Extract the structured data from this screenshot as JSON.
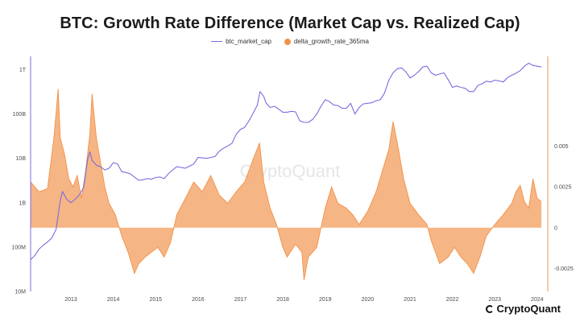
{
  "chart_data": {
    "type": "line",
    "title": "BTC: Growth Rate Difference (Market Cap vs. Realized Cap)",
    "watermark": "CryptoQuant",
    "brand": "CryptoQuant",
    "legend": [
      "btc_market_cap",
      "delta_growth_rate_365ma"
    ],
    "colors": {
      "market_cap": "#7b6ce0",
      "delta": "#f2924a",
      "delta_fill": "#f4a86f",
      "axis_right": "#f2924a",
      "axis_left": "#7b6ce0"
    },
    "x_ticks": [
      "2013",
      "2014",
      "2015",
      "2016",
      "2017",
      "2018",
      "2019",
      "2020",
      "2021",
      "2022",
      "2023",
      "2024"
    ],
    "y_left": {
      "scale": "log",
      "ticks": [
        "10M",
        "100M",
        "1B",
        "10B",
        "100B",
        "1T"
      ],
      "tick_values": [
        10000000.0,
        100000000.0,
        1000000000.0,
        10000000000.0,
        100000000000.0,
        1000000000000.0
      ],
      "range": [
        10000000.0,
        2000000000000.0
      ]
    },
    "y_right": {
      "ticks": [
        "-0.0025",
        "0",
        "0.0025",
        "0.005"
      ],
      "tick_values": [
        -0.0025,
        0,
        0.0025,
        0.005
      ],
      "range": [
        -0.0039,
        0.0105
      ]
    },
    "x_range": [
      2012.55,
      2024.75
    ],
    "series": [
      {
        "name": "btc_market_cap",
        "style": "line",
        "x": [
          2012.55,
          2012.65,
          2012.75,
          2012.85,
          2012.95,
          2013.05,
          2013.15,
          2013.25,
          2013.3,
          2013.4,
          2013.5,
          2013.6,
          2013.7,
          2013.8,
          2013.9,
          2013.95,
          2014.0,
          2014.1,
          2014.2,
          2014.3,
          2014.4,
          2014.5,
          2014.6,
          2014.7,
          2014.8,
          2014.9,
          2015.0,
          2015.1,
          2015.2,
          2015.3,
          2015.4,
          2015.5,
          2015.6,
          2015.7,
          2015.8,
          2015.9,
          2016.0,
          2016.2,
          2016.4,
          2016.5,
          2016.7,
          2016.9,
          2017.0,
          2017.1,
          2017.2,
          2017.3,
          2017.4,
          2017.5,
          2017.6,
          2017.7,
          2017.8,
          2017.9,
          2017.96,
          2018.05,
          2018.1,
          2018.2,
          2018.3,
          2018.4,
          2018.5,
          2018.6,
          2018.7,
          2018.8,
          2018.9,
          2019.0,
          2019.1,
          2019.2,
          2019.3,
          2019.4,
          2019.5,
          2019.6,
          2019.7,
          2019.8,
          2019.9,
          2020.0,
          2020.1,
          2020.2,
          2020.3,
          2020.4,
          2020.5,
          2020.6,
          2020.7,
          2020.8,
          2020.9,
          2021.0,
          2021.1,
          2021.2,
          2021.3,
          2021.4,
          2021.5,
          2021.6,
          2021.7,
          2021.8,
          2021.9,
          2022.0,
          2022.1,
          2022.2,
          2022.3,
          2022.4,
          2022.5,
          2022.6,
          2022.7,
          2022.8,
          2022.9,
          2023.0,
          2023.1,
          2023.2,
          2023.3,
          2023.4,
          2023.5,
          2023.6,
          2023.7,
          2023.8,
          2023.9,
          2024.0,
          2024.1,
          2024.2,
          2024.3,
          2024.4,
          2024.5,
          2024.6
        ],
        "y": [
          52000000.0,
          65000000.0,
          90000000.0,
          110000000.0,
          130000000.0,
          160000000.0,
          250000000.0,
          1100000000.0,
          1800000000.0,
          1200000000.0,
          1000000000.0,
          1200000000.0,
          1500000000.0,
          2200000000.0,
          10000000000.0,
          14000000000.0,
          9000000000.0,
          7000000000.0,
          6500000000.0,
          5500000000.0,
          6000000000.0,
          8000000000.0,
          7500000000.0,
          5000000000.0,
          4800000000.0,
          4500000000.0,
          3800000000.0,
          3200000000.0,
          3300000000.0,
          3500000000.0,
          3400000000.0,
          3700000000.0,
          3800000000.0,
          3500000000.0,
          4500000000.0,
          5500000000.0,
          6500000000.0,
          6000000000.0,
          7500000000.0,
          10500000000.0,
          10000000000.0,
          11000000000.0,
          14500000000.0,
          17000000000.0,
          19000000000.0,
          22000000000.0,
          35000000000.0,
          45000000000.0,
          50000000000.0,
          70000000000.0,
          105000000000.0,
          160000000000.0,
          320000000000.0,
          250000000000.0,
          180000000000.0,
          140000000000.0,
          150000000000.0,
          130000000000.0,
          110000000000.0,
          110000000000.0,
          115000000000.0,
          112000000000.0,
          70000000000.0,
          65000000000.0,
          65000000000.0,
          75000000000.0,
          100000000000.0,
          150000000000.0,
          210000000000.0,
          190000000000.0,
          160000000000.0,
          155000000000.0,
          135000000000.0,
          135000000000.0,
          175000000000.0,
          100000000000.0,
          140000000000.0,
          170000000000.0,
          175000000000.0,
          180000000000.0,
          200000000000.0,
          210000000000.0,
          300000000000.0,
          580000000000.0,
          850000000000.0,
          1050000000000.0,
          1100000000000.0,
          900000000000.0,
          650000000000.0,
          750000000000.0,
          900000000000.0,
          1150000000000.0,
          1200000000000.0,
          850000000000.0,
          750000000000.0,
          800000000000.0,
          850000000000.0,
          600000000000.0,
          400000000000.0,
          430000000000.0,
          400000000000.0,
          380000000000.0,
          320000000000.0,
          320000000000.0,
          440000000000.0,
          480000000000.0,
          550000000000.0,
          530000000000.0,
          580000000000.0,
          560000000000.0,
          530000000000.0,
          660000000000.0,
          750000000000.0,
          830000000000.0,
          950000000000.0,
          1200000000000.0,
          1400000000000.0,
          1250000000000.0,
          1200000000000.0,
          1150000000000.0
        ]
      },
      {
        "name": "delta_growth_rate_365ma",
        "style": "area",
        "x": [
          2012.55,
          2012.75,
          2012.95,
          2013.1,
          2013.2,
          2013.25,
          2013.35,
          2013.45,
          2013.55,
          2013.65,
          2013.75,
          2013.85,
          2013.95,
          2014.0,
          2014.1,
          2014.2,
          2014.3,
          2014.4,
          2014.55,
          2014.7,
          2014.85,
          2015.0,
          2015.1,
          2015.25,
          2015.4,
          2015.55,
          2015.7,
          2015.85,
          2016.0,
          2016.2,
          2016.4,
          2016.6,
          2016.8,
          2017.0,
          2017.2,
          2017.4,
          2017.6,
          2017.8,
          2017.95,
          2018.05,
          2018.2,
          2018.35,
          2018.5,
          2018.6,
          2018.8,
          2018.95,
          2019.0,
          2019.1,
          2019.3,
          2019.5,
          2019.65,
          2019.8,
          2020.0,
          2020.15,
          2020.3,
          2020.5,
          2020.7,
          2020.85,
          2021.0,
          2021.1,
          2021.2,
          2021.35,
          2021.5,
          2021.7,
          2021.9,
          2022.0,
          2022.2,
          2022.4,
          2022.55,
          2022.7,
          2022.85,
          2023.0,
          2023.15,
          2023.3,
          2023.5,
          2023.7,
          2023.9,
          2024.0,
          2024.1,
          2024.2,
          2024.3,
          2024.4,
          2024.5,
          2024.6
        ],
        "y": [
          0.0028,
          0.0022,
          0.0024,
          0.0055,
          0.0085,
          0.0055,
          0.0045,
          0.003,
          0.0025,
          0.0032,
          0.0018,
          0.0035,
          0.0058,
          0.0082,
          0.0055,
          0.004,
          0.0025,
          0.0015,
          0.0008,
          -0.0005,
          -0.0015,
          -0.0028,
          -0.0022,
          -0.0018,
          -0.0015,
          -0.0012,
          -0.0018,
          -0.0009,
          0.0008,
          0.0018,
          0.0028,
          0.0022,
          0.0032,
          0.002,
          0.0015,
          0.0022,
          0.0028,
          0.0042,
          0.0052,
          0.0028,
          0.0012,
          0.0002,
          -0.0012,
          -0.0018,
          -0.001,
          -0.0015,
          -0.0032,
          -0.0018,
          -0.0012,
          0.0012,
          0.0025,
          0.0015,
          0.0012,
          0.0008,
          0.0002,
          0.001,
          0.0022,
          0.0035,
          0.0048,
          0.0065,
          0.0052,
          0.003,
          0.0015,
          0.0008,
          0.0002,
          -0.0008,
          -0.0022,
          -0.0018,
          -0.0012,
          -0.0018,
          -0.0022,
          -0.0028,
          -0.0018,
          -0.0005,
          0.0002,
          0.0008,
          0.0015,
          0.0022,
          0.0026,
          0.0016,
          0.0012,
          0.003,
          0.0018,
          0.0016
        ]
      }
    ]
  }
}
